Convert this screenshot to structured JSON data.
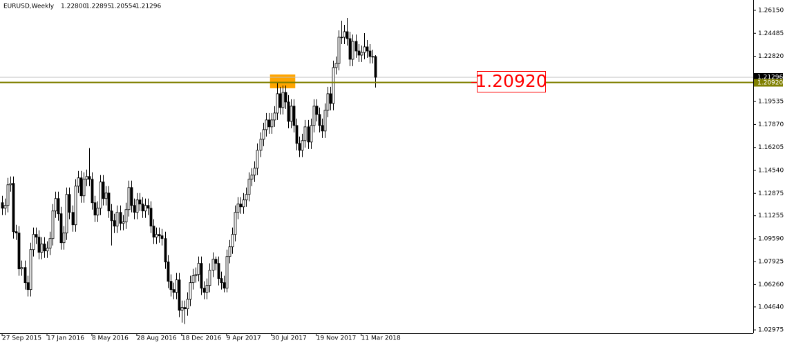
{
  "chart_data": {
    "type": "candlestick",
    "title": "EURUSD,Weekly",
    "info": [
      "1.22800",
      "1.22895",
      "1.20554",
      "1.21296"
    ],
    "open": [
      1.122,
      1.118,
      1.12,
      1.135,
      1.136,
      1.101,
      1.1,
      1.074,
      1.075,
      1.064,
      1.059,
      1.088,
      1.099,
      1.097,
      1.086,
      1.092,
      1.087,
      1.089,
      1.096,
      1.116,
      1.125,
      1.114,
      1.093,
      1.1,
      1.128,
      1.115,
      1.106,
      1.134,
      1.14,
      1.127,
      1.139,
      1.141,
      1.139,
      1.122,
      1.113,
      1.118,
      1.137,
      1.125,
      1.129,
      1.116,
      1.109,
      1.105,
      1.115,
      1.107,
      1.108,
      1.117,
      1.133,
      1.12,
      1.115,
      1.124,
      1.121,
      1.116,
      1.12,
      1.118,
      1.105,
      1.097,
      1.099,
      1.098,
      1.096,
      1.079,
      1.065,
      1.059,
      1.057,
      1.066,
      1.044,
      1.046,
      1.045,
      1.052,
      1.064,
      1.069,
      1.07,
      1.078,
      1.06,
      1.057,
      1.062,
      1.073,
      1.081,
      1.078,
      1.067,
      1.064,
      1.06,
      1.083,
      1.09,
      1.099,
      1.115,
      1.121,
      1.119,
      1.124,
      1.128,
      1.139,
      1.142,
      1.147,
      1.16,
      1.168,
      1.175,
      1.182,
      1.177,
      1.182,
      1.187,
      1.201,
      1.191,
      1.202,
      1.195,
      1.181,
      1.192,
      1.178,
      1.165,
      1.16,
      1.167,
      1.177,
      1.166,
      1.178,
      1.192,
      1.186,
      1.178,
      1.174,
      1.189,
      1.201,
      1.194,
      1.22,
      1.223,
      1.242,
      1.242,
      1.246,
      1.241,
      1.226,
      1.239,
      1.232,
      1.229,
      1.231,
      1.235,
      1.232,
      1.228,
      1.228
    ],
    "high": [
      1.127,
      1.125,
      1.14,
      1.141,
      1.141,
      1.106,
      1.105,
      1.08,
      1.08,
      1.069,
      1.093,
      1.104,
      1.104,
      1.102,
      1.097,
      1.097,
      1.094,
      1.101,
      1.121,
      1.13,
      1.13,
      1.119,
      1.105,
      1.133,
      1.133,
      1.12,
      1.139,
      1.145,
      1.145,
      1.144,
      1.146,
      1.1616,
      1.144,
      1.127,
      1.123,
      1.142,
      1.142,
      1.134,
      1.134,
      1.121,
      1.114,
      1.12,
      1.12,
      1.113,
      1.122,
      1.138,
      1.138,
      1.125,
      1.129,
      1.129,
      1.126,
      1.125,
      1.125,
      1.123,
      1.11,
      1.104,
      1.104,
      1.103,
      1.101,
      1.084,
      1.07,
      1.064,
      1.071,
      1.071,
      1.051,
      1.051,
      1.057,
      1.069,
      1.074,
      1.075,
      1.083,
      1.083,
      1.065,
      1.067,
      1.078,
      1.086,
      1.083,
      1.083,
      1.072,
      1.069,
      1.088,
      1.095,
      1.104,
      1.12,
      1.126,
      1.126,
      1.129,
      1.133,
      1.144,
      1.147,
      1.152,
      1.165,
      1.173,
      1.18,
      1.187,
      1.187,
      1.187,
      1.192,
      1.2092,
      1.206,
      1.207,
      1.207,
      1.2,
      1.197,
      1.197,
      1.183,
      1.17,
      1.172,
      1.182,
      1.182,
      1.183,
      1.197,
      1.197,
      1.191,
      1.183,
      1.194,
      1.206,
      1.206,
      1.225,
      1.228,
      1.247,
      1.254,
      1.251,
      1.256,
      1.246,
      1.244,
      1.244,
      1.237,
      1.236,
      1.245,
      1.24,
      1.237,
      1.233,
      1.22895
    ],
    "low": [
      1.113,
      1.113,
      1.115,
      1.13,
      1.096,
      1.095,
      1.069,
      1.069,
      1.059,
      1.054,
      1.054,
      1.083,
      1.092,
      1.081,
      1.081,
      1.082,
      1.082,
      1.084,
      1.091,
      1.111,
      1.109,
      1.088,
      1.088,
      1.095,
      1.11,
      1.101,
      1.101,
      1.129,
      1.122,
      1.122,
      1.134,
      1.134,
      1.117,
      1.108,
      1.108,
      1.113,
      1.12,
      1.12,
      1.111,
      1.091,
      1.1,
      1.1,
      1.102,
      1.102,
      1.103,
      1.112,
      1.115,
      1.11,
      1.11,
      1.116,
      1.111,
      1.111,
      1.113,
      1.1,
      1.092,
      1.092,
      1.093,
      1.091,
      1.074,
      1.06,
      1.054,
      1.052,
      1.052,
      1.039,
      1.035,
      1.034,
      1.04,
      1.047,
      1.059,
      1.064,
      1.065,
      1.055,
      1.052,
      1.052,
      1.057,
      1.068,
      1.073,
      1.062,
      1.059,
      1.057,
      1.057,
      1.078,
      1.085,
      1.094,
      1.11,
      1.114,
      1.114,
      1.119,
      1.123,
      1.134,
      1.137,
      1.142,
      1.155,
      1.163,
      1.17,
      1.172,
      1.172,
      1.177,
      1.182,
      1.186,
      1.186,
      1.19,
      1.176,
      1.176,
      1.173,
      1.16,
      1.155,
      1.155,
      1.162,
      1.161,
      1.161,
      1.173,
      1.181,
      1.173,
      1.169,
      1.169,
      1.184,
      1.189,
      1.189,
      1.215,
      1.218,
      1.237,
      1.237,
      1.236,
      1.221,
      1.221,
      1.227,
      1.224,
      1.224,
      1.226,
      1.227,
      1.223,
      1.223,
      1.20554
    ],
    "close": [
      1.118,
      1.12,
      1.135,
      1.136,
      1.101,
      1.1,
      1.074,
      1.075,
      1.064,
      1.059,
      1.088,
      1.099,
      1.097,
      1.086,
      1.092,
      1.087,
      1.089,
      1.096,
      1.116,
      1.125,
      1.114,
      1.093,
      1.1,
      1.128,
      1.115,
      1.106,
      1.134,
      1.14,
      1.127,
      1.139,
      1.141,
      1.139,
      1.122,
      1.113,
      1.118,
      1.137,
      1.125,
      1.129,
      1.116,
      1.109,
      1.105,
      1.115,
      1.107,
      1.108,
      1.117,
      1.133,
      1.12,
      1.115,
      1.124,
      1.121,
      1.116,
      1.12,
      1.118,
      1.105,
      1.097,
      1.099,
      1.098,
      1.096,
      1.079,
      1.065,
      1.059,
      1.057,
      1.066,
      1.044,
      1.046,
      1.045,
      1.052,
      1.064,
      1.069,
      1.07,
      1.078,
      1.06,
      1.057,
      1.062,
      1.073,
      1.081,
      1.078,
      1.067,
      1.064,
      1.06,
      1.083,
      1.09,
      1.099,
      1.115,
      1.121,
      1.119,
      1.124,
      1.128,
      1.139,
      1.142,
      1.147,
      1.16,
      1.168,
      1.175,
      1.182,
      1.177,
      1.182,
      1.187,
      1.201,
      1.191,
      1.202,
      1.195,
      1.181,
      1.192,
      1.178,
      1.165,
      1.16,
      1.167,
      1.177,
      1.166,
      1.178,
      1.192,
      1.186,
      1.178,
      1.174,
      1.189,
      1.201,
      1.194,
      1.22,
      1.223,
      1.242,
      1.242,
      1.246,
      1.241,
      1.226,
      1.239,
      1.232,
      1.229,
      1.231,
      1.235,
      1.232,
      1.228,
      1.228,
      1.21296
    ],
    "xlim": [
      -0.75,
      267.75
    ],
    "xticks": [
      {
        "value": 0,
        "label": "27 Sep 2015"
      },
      {
        "value": 16,
        "label": "17 Jan 2016"
      },
      {
        "value": 32,
        "label": "8 May 2016"
      },
      {
        "value": 48,
        "label": "28 Aug 2016"
      },
      {
        "value": 64,
        "label": "18 Dec 2016"
      },
      {
        "value": 80,
        "label": "9 Apr 2017"
      },
      {
        "value": 96,
        "label": "30 Jul 2017"
      },
      {
        "value": 112,
        "label": "19 Nov 2017"
      },
      {
        "value": 128,
        "label": "11 Mar 2018"
      }
    ],
    "ylim": [
      1.0273,
      1.269
    ],
    "yticks": [
      {
        "value": 1.2615,
        "label": "1.26150"
      },
      {
        "value": 1.24485,
        "label": "1.24485"
      },
      {
        "value": 1.2282,
        "label": "1.22820"
      },
      {
        "value": 1.19535,
        "label": "1.19535"
      },
      {
        "value": 1.1787,
        "label": "1.17870"
      },
      {
        "value": 1.16205,
        "label": "1.16205"
      },
      {
        "value": 1.1454,
        "label": "1.14540"
      },
      {
        "value": 1.12875,
        "label": "1.12875"
      },
      {
        "value": 1.11255,
        "label": "1.11255"
      },
      {
        "value": 1.0959,
        "label": "1.09590"
      },
      {
        "value": 1.07925,
        "label": "1.07925"
      },
      {
        "value": 1.0626,
        "label": "1.06260"
      },
      {
        "value": 1.0464,
        "label": "1.04640"
      },
      {
        "value": 1.02975,
        "label": "1.02975"
      }
    ],
    "bid": {
      "value": 1.21296,
      "label": "1.21296",
      "color": "#c0c0c0"
    },
    "level": {
      "value": 1.2092,
      "label": "1.20920",
      "color": "#808000"
    },
    "zone": {
      "x": [
        95.5,
        104.5
      ],
      "y": [
        1.205,
        1.215
      ],
      "color": "#ffa500"
    },
    "up_color": "#ffffff",
    "down_color": "#000000",
    "annotation_color": "#ff0000"
  }
}
